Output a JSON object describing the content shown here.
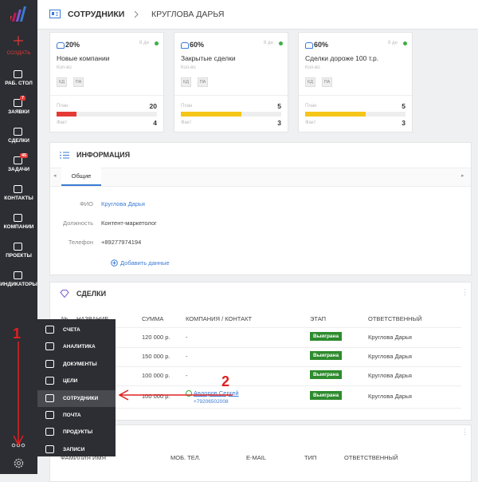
{
  "sidebar": {
    "create": "СОЗДАТЬ",
    "items": [
      {
        "label": "РАБ. СТОЛ"
      },
      {
        "label": "ЗАЯВКИ",
        "badge": "7"
      },
      {
        "label": "СДЕЛКИ"
      },
      {
        "label": "ЗАДАЧИ",
        "badge": "45"
      },
      {
        "label": "КОНТАКТЫ"
      },
      {
        "label": "КОМПАНИИ"
      },
      {
        "label": "ПРОЕКТЫ"
      },
      {
        "label": "ИНДИКАТОРЫ"
      }
    ]
  },
  "breadcrumb": [
    "СОТРУДНИКИ",
    "КРУГЛОВА ДАРЬЯ"
  ],
  "cards": [
    {
      "percent": "20%",
      "period": "8 дн",
      "title": "Новые компании",
      "subtitle": "Кол-во",
      "buttons": [
        "КД",
        "ПА"
      ],
      "plan_label": "План",
      "plan": 20,
      "fact_label": "Факт",
      "fact": 4,
      "bar_color": "#e53935"
    },
    {
      "percent": "60%",
      "period": "8 дн",
      "title": "Закрытые сделки",
      "subtitle": "Кол-во",
      "buttons": [
        "КД",
        "ПА"
      ],
      "plan_label": "План",
      "plan": 5,
      "fact_label": "Факт",
      "fact": 3,
      "bar_color": "#f5c518"
    },
    {
      "percent": "60%",
      "period": "8 дн",
      "title": "Сделки дороже 100 т.р.",
      "subtitle": "Кол-во",
      "buttons": [
        "КД",
        "ПА"
      ],
      "plan_label": "План",
      "plan": 5,
      "fact_label": "Факт",
      "fact": 3,
      "bar_color": "#f5c518"
    }
  ],
  "info": {
    "title": "ИНФОРМАЦИЯ",
    "tab": "Общие",
    "fields": [
      {
        "label": "ФИО",
        "value": "Круглова Дарья"
      },
      {
        "label": "Должность",
        "value": "Контент-маркетолог"
      },
      {
        "label": "Телефон",
        "value": "+89277974194"
      }
    ],
    "add": "Добавить данные"
  },
  "deals": {
    "title": "СДЕЛКИ",
    "columns": [
      "№",
      "НАЗВАНИЕ",
      "СУММА",
      "КОМПАНИЯ / КОНТАКТ",
      "ЭТАП",
      "ОТВЕТСТВЕННЫЙ"
    ],
    "rows": [
      {
        "sum": "120 000 р.",
        "company": "-",
        "stage": "Выиграна",
        "owner": "Круглова Дарья"
      },
      {
        "sum": "150 000 р.",
        "company": "-",
        "stage": "Выиграна",
        "owner": "Круглова Дарья"
      },
      {
        "sum": "100 000 р.",
        "company": "-",
        "stage": "Выиграна",
        "owner": "Круглова Дарья"
      },
      {
        "sum": "100 000 р.",
        "company": "Авдоров Сергей",
        "phone": "+79206502008",
        "stage": "Выиграна",
        "owner": "Круглова Дарья"
      }
    ]
  },
  "contacts": {
    "columns": [
      "ФАМИЛИЯ ИМЯ",
      "МОБ. ТЕЛ.",
      "E-MAIL",
      "ТИП",
      "ОТВЕТСТВЕННЫЙ"
    ]
  },
  "menu": {
    "items": [
      "СЧЕТА",
      "АНАЛИТИКА",
      "ДОКУМЕНТЫ",
      "ЦЕЛИ",
      "СОТРУДНИКИ",
      "ПОЧТА",
      "ПРОДУКТЫ",
      "ЗАПИСИ"
    ],
    "active": 4
  },
  "annotations": [
    {
      "text": "1"
    },
    {
      "text": "2"
    }
  ]
}
